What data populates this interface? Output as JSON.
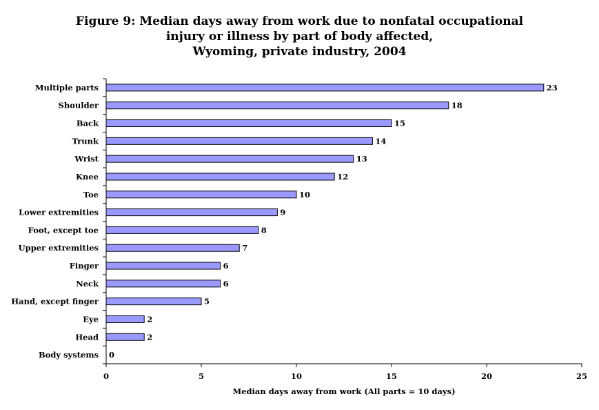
{
  "chart_data": {
    "type": "bar",
    "orientation": "horizontal",
    "title": [
      "Figure 9:  Median days away from work due to nonfatal occupational",
      "injury or illness by part of body affected,",
      "Wyoming, private industry, 2004"
    ],
    "xlabel": "Median days away from work (All parts = 10 days)",
    "ylabel": "",
    "xlim": [
      0,
      25
    ],
    "xticks": [
      0,
      5,
      10,
      15,
      20,
      25
    ],
    "categories": [
      "Multiple parts",
      "Shoulder",
      "Back",
      "Trunk",
      "Wrist",
      "Knee",
      "Toe",
      "Lower extremities",
      "Foot, except toe",
      "Upper extremities",
      "Finger",
      "Neck",
      "Hand, except finger",
      "Eye",
      "Head",
      "Body systems"
    ],
    "values": [
      23,
      18,
      15,
      14,
      13,
      12,
      10,
      9,
      8,
      7,
      6,
      6,
      5,
      2,
      2,
      0
    ],
    "data_labels": [
      "23",
      "18",
      "15",
      "14",
      "13",
      "12",
      "10",
      "9",
      "8",
      "7",
      "6",
      "6",
      "5",
      "2",
      "2",
      "0"
    ],
    "grid": false,
    "legend": "none",
    "colors": {
      "bar_fill": "#9999ff",
      "bar_stroke": "#000000",
      "axis": "#000000"
    }
  }
}
